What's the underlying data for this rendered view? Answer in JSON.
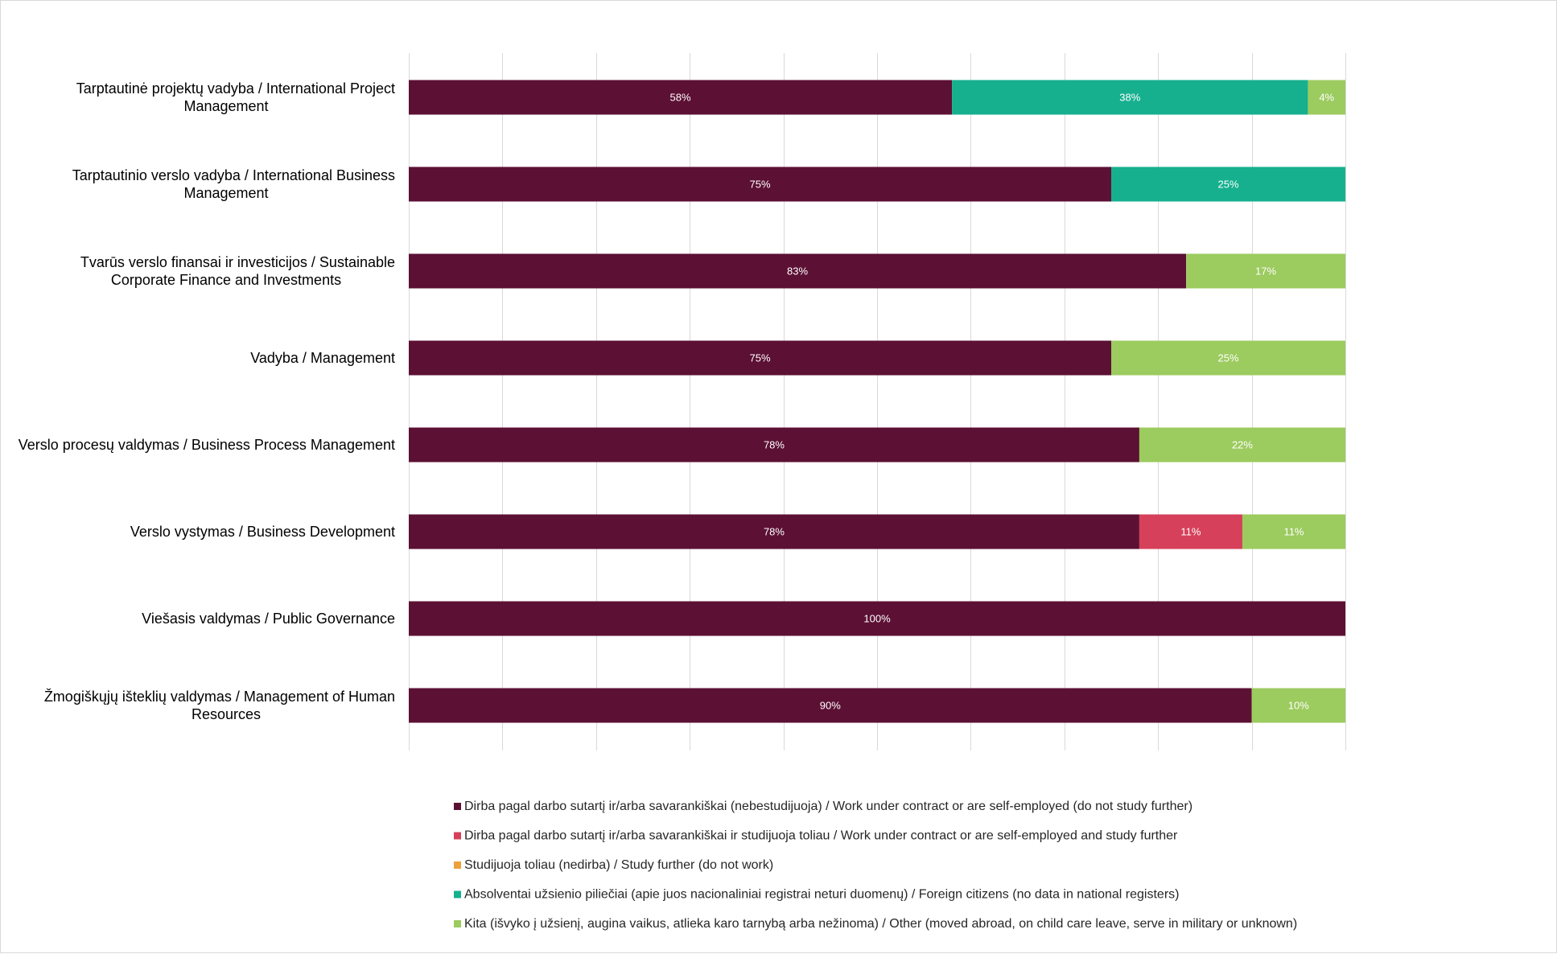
{
  "chart_data": {
    "type": "bar",
    "orientation": "horizontal",
    "stacked": "percent",
    "title": "",
    "xlabel": "",
    "ylabel": "",
    "xlim": [
      0,
      100
    ],
    "grid": true,
    "legend_position": "bottom",
    "categories": [
      [
        "Tarptautinė projektų vadyba / International Project",
        "Management"
      ],
      [
        "Tarptautinio verslo vadyba / International Business",
        "Management"
      ],
      [
        "Tvarūs verslo finansai ir investicijos / Sustainable",
        "Corporate Finance and Investments"
      ],
      [
        "Vadyba / Management"
      ],
      [
        "Verslo procesų valdymas / Business Process Management"
      ],
      [
        "Verslo vystymas / Business Development"
      ],
      [
        "Viešasis valdymas / Public Governance"
      ],
      [
        "Žmogiškųjų išteklių valdymas / Management of Human",
        "Resources"
      ]
    ],
    "series": [
      {
        "name": "Dirba pagal darbo sutartį ir/arba savarankiškai (nebestudijuoja) / Work under contract or are self-employed (do not study further)",
        "color": "#5c1034",
        "values": [
          58,
          75,
          83,
          75,
          78,
          78,
          100,
          90
        ]
      },
      {
        "name": "Dirba pagal darbo sutartį ir/arba savarankiškai  ir studijuoja toliau / Work under contract or are self-employed and study further",
        "color": "#d6405a",
        "values": [
          0,
          0,
          0,
          0,
          0,
          11,
          0,
          0
        ]
      },
      {
        "name": "Studijuoja toliau (nedirba) / Study further (do not work)",
        "color": "#eea03d",
        "values": [
          0,
          0,
          0,
          0,
          0,
          0,
          0,
          0
        ]
      },
      {
        "name": "Absolventai užsienio piliečiai (apie juos nacionaliniai registrai neturi duomenų) / Foreign citizens (no data in national registers)",
        "color": "#16b08f",
        "values": [
          38,
          25,
          0,
          0,
          0,
          0,
          0,
          0
        ]
      },
      {
        "name": "Kita (išvyko į užsienį, augina vaikus, atlieka karo tarnybą arba nežinoma) / Other (moved abroad, on child care leave, serve in military or unknown)",
        "color": "#9ccb5f",
        "values": [
          4,
          0,
          17,
          25,
          22,
          11,
          0,
          10
        ]
      }
    ],
    "data_label_suffix": "%"
  },
  "colors": {
    "gridline": "#d9d9d9",
    "data_label": "#ffffff",
    "axis_text": "#000000",
    "legend_text": "#262626"
  }
}
